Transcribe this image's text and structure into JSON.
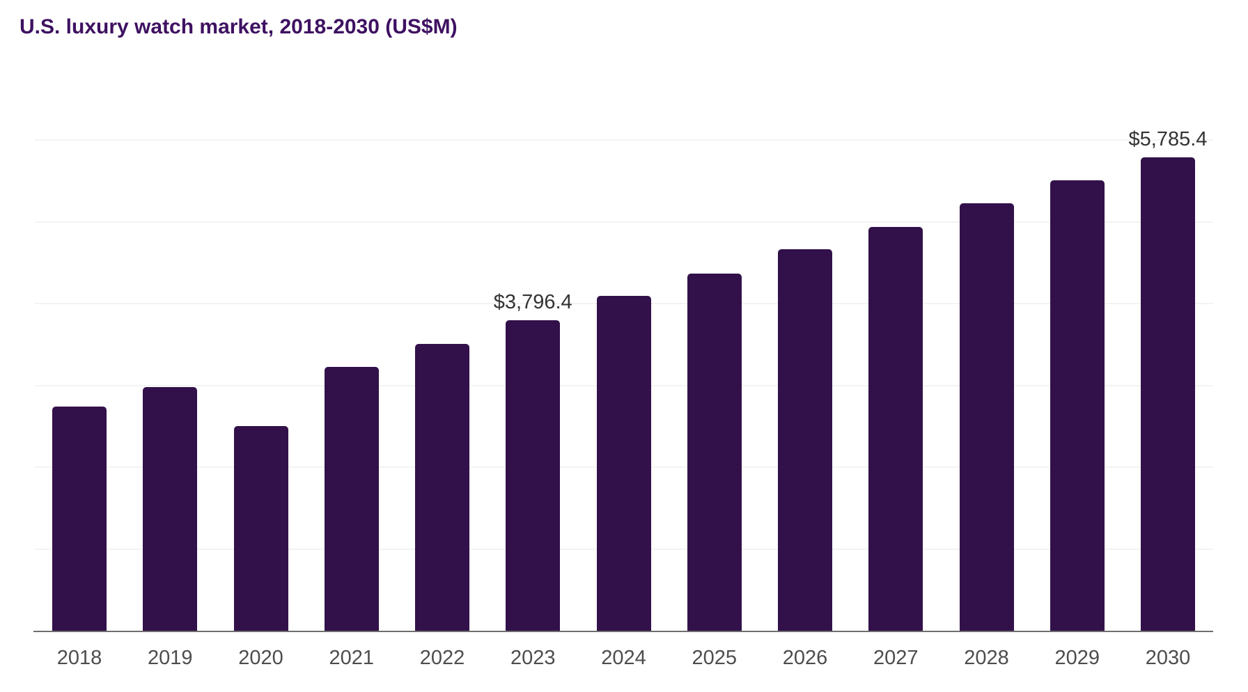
{
  "header": {
    "title": "U.S. luxury watch market, 2018-2030 (US$M)"
  },
  "colors": {
    "bar": "#32114a",
    "title_text": "#3e1161",
    "value_label_text": "#333333",
    "year_label_text": "#4d4d4d",
    "axis_line": "#6e6e6e",
    "gridline": "#f3f3f3"
  },
  "chart_data": {
    "type": "bar",
    "title": "U.S. luxury watch market, 2018-2030 (US$M)",
    "unit": "US$M",
    "categories": [
      "2018",
      "2019",
      "2020",
      "2021",
      "2022",
      "2023",
      "2024",
      "2025",
      "2026",
      "2027",
      "2028",
      "2029",
      "2030"
    ],
    "values": [
      2740,
      2980,
      2500,
      3225,
      3505,
      3796.4,
      4090,
      4370,
      4660,
      4935,
      5225,
      5510,
      5785.4
    ],
    "data_labels": [
      "",
      "",
      "",
      "",
      "",
      "$3,796.4",
      "",
      "",
      "",
      "",
      "",
      "",
      "$5,785.4"
    ],
    "xlabel": "",
    "ylabel": "",
    "ylim": [
      0,
      6000
    ],
    "gridline_values": [
      1000,
      2000,
      3000,
      4000,
      5000,
      6000
    ],
    "grid": "horizontal-faint",
    "legend": "none",
    "y_axis_tick_labels": "none"
  }
}
